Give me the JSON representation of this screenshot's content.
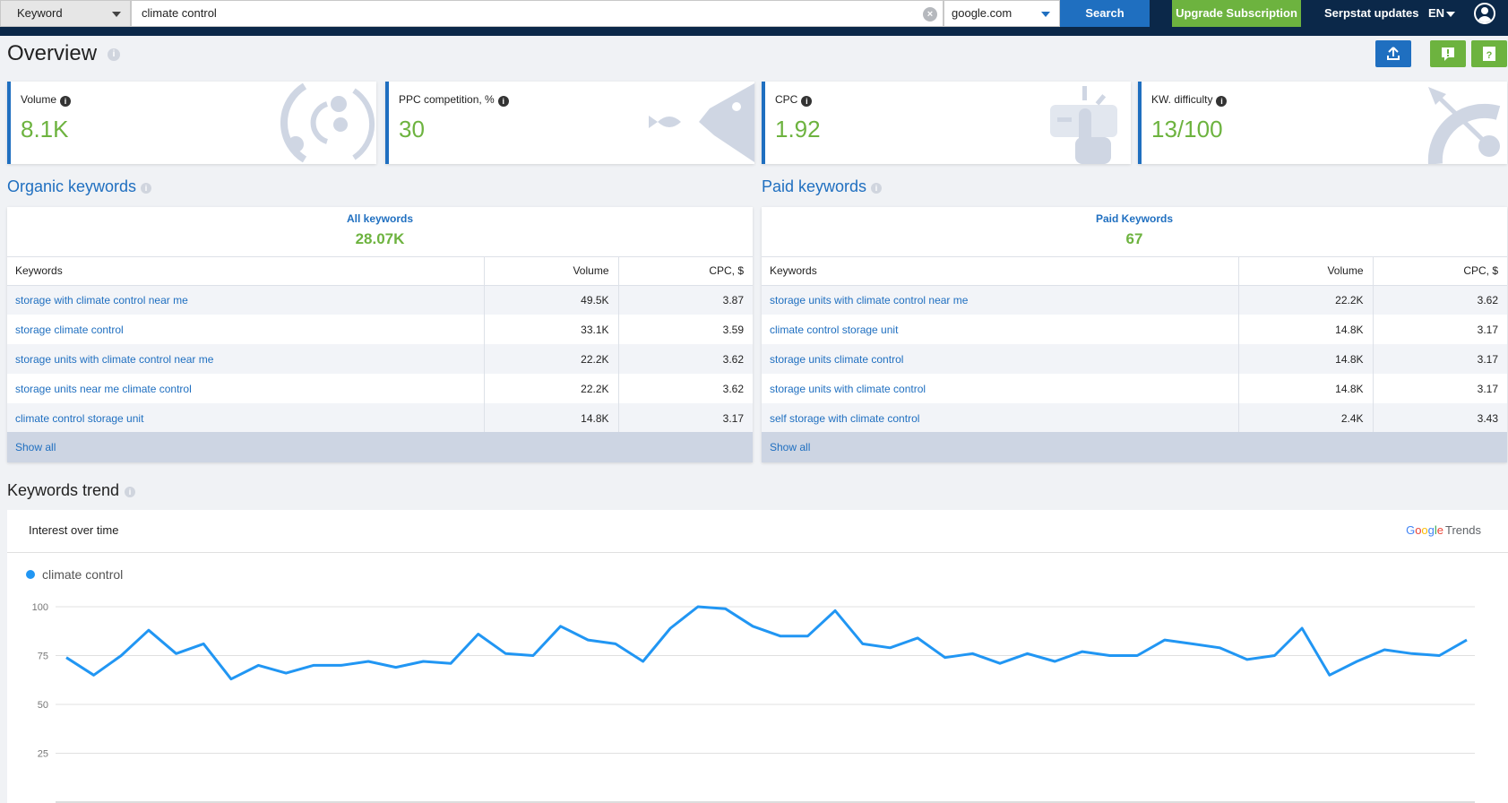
{
  "search": {
    "type_label": "Keyword",
    "query": "climate control",
    "engine": "google.com",
    "button": "Search"
  },
  "nav": {
    "upgrade": "Upgrade Subscription",
    "updates": "Serpstat updates",
    "lang": "EN"
  },
  "header": {
    "title": "Overview"
  },
  "kpis": [
    {
      "label": "Volume",
      "value": "8.1K"
    },
    {
      "label": "PPC competition, %",
      "value": "30"
    },
    {
      "label": "CPC",
      "value": "1.92"
    },
    {
      "label": "KW. difficulty",
      "value": "13/100"
    }
  ],
  "organic": {
    "title": "Organic keywords",
    "summary_label": "All keywords",
    "summary_value": "28.07K",
    "columns": [
      "Keywords",
      "Volume",
      "CPC, $"
    ],
    "rows": [
      {
        "kw": "storage with climate control near me",
        "vol": "49.5K",
        "cpc": "3.87"
      },
      {
        "kw": "storage climate control",
        "vol": "33.1K",
        "cpc": "3.59"
      },
      {
        "kw": "storage units with climate control near me",
        "vol": "22.2K",
        "cpc": "3.62"
      },
      {
        "kw": "storage units near me climate control",
        "vol": "22.2K",
        "cpc": "3.62"
      },
      {
        "kw": "climate control storage unit",
        "vol": "14.8K",
        "cpc": "3.17"
      }
    ],
    "show_all": "Show all"
  },
  "paid": {
    "title": "Paid keywords",
    "summary_label": "Paid Keywords",
    "summary_value": "67",
    "columns": [
      "Keywords",
      "Volume",
      "CPC, $"
    ],
    "rows": [
      {
        "kw": "storage units with climate control near me",
        "vol": "22.2K",
        "cpc": "3.62"
      },
      {
        "kw": "climate control storage unit",
        "vol": "14.8K",
        "cpc": "3.17"
      },
      {
        "kw": "storage units climate control",
        "vol": "14.8K",
        "cpc": "3.17"
      },
      {
        "kw": "storage units with climate control",
        "vol": "14.8K",
        "cpc": "3.17"
      },
      {
        "kw": "self storage with climate control",
        "vol": "2.4K",
        "cpc": "3.43"
      }
    ],
    "show_all": "Show all"
  },
  "trend": {
    "section_title": "Keywords trend",
    "panel_title": "Interest over time",
    "brand_google": "Google",
    "brand_trends": "Trends"
  },
  "chart_data": {
    "type": "line",
    "series": [
      {
        "name": "climate control",
        "values": [
          74,
          65,
          75,
          88,
          76,
          81,
          63,
          70,
          66,
          70,
          70,
          72,
          69,
          72,
          71,
          86,
          76,
          75,
          90,
          83,
          81,
          72,
          89,
          100,
          99,
          90,
          85,
          85,
          98,
          81,
          79,
          84,
          74,
          76,
          71,
          76,
          72,
          77,
          75,
          75,
          83,
          81,
          79,
          73,
          75,
          89,
          65,
          72,
          78,
          76,
          75,
          83
        ]
      }
    ],
    "yticks": [
      25,
      50,
      75,
      100
    ],
    "ylim": [
      0,
      100
    ],
    "grid": true,
    "legend_position": "top-left",
    "color": "#2196f3"
  }
}
